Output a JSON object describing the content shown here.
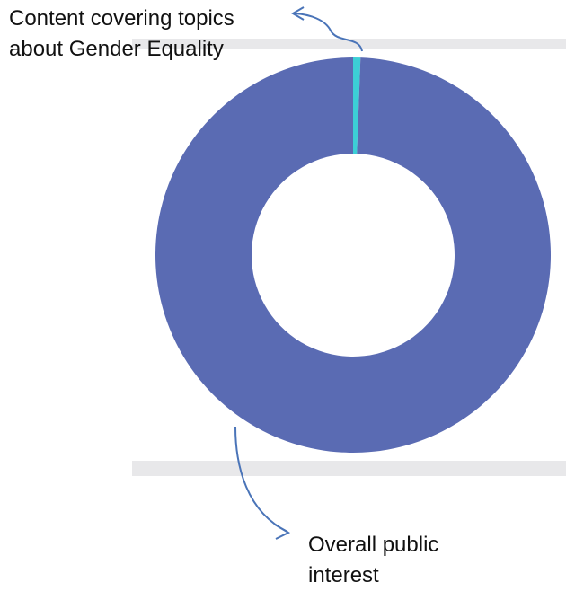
{
  "chart_data": {
    "type": "donut",
    "categories": [
      "Content covering topics about Gender Equality",
      "Overall public interest"
    ],
    "values": [
      0.6,
      99.4
    ],
    "colors": [
      "#3ccfd6",
      "#5a6bb3"
    ]
  }
}
